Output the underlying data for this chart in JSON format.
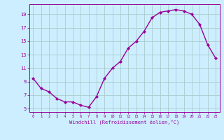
{
  "x": [
    0,
    1,
    2,
    3,
    4,
    5,
    6,
    7,
    8,
    9,
    10,
    11,
    12,
    13,
    14,
    15,
    16,
    17,
    18,
    19,
    20,
    21,
    22,
    23
  ],
  "y": [
    9.5,
    8.0,
    7.5,
    6.5,
    6.0,
    6.0,
    5.5,
    5.2,
    6.8,
    9.5,
    11.0,
    12.0,
    14.0,
    15.0,
    16.5,
    18.5,
    19.3,
    19.5,
    19.7,
    19.5,
    19.0,
    17.5,
    14.5,
    12.5
  ],
  "xlim": [
    -0.5,
    23.5
  ],
  "ylim": [
    4.5,
    20.5
  ],
  "xticks": [
    0,
    1,
    2,
    3,
    4,
    5,
    6,
    7,
    8,
    9,
    10,
    11,
    12,
    13,
    14,
    15,
    16,
    17,
    18,
    19,
    20,
    21,
    22,
    23
  ],
  "yticks": [
    5,
    7,
    9,
    11,
    13,
    15,
    17,
    19
  ],
  "xlabel": "Windchill (Refroidissement éolien,°C)",
  "line_color": "#990099",
  "bg_color": "#cceeff",
  "grid_color": "#aacccc",
  "marker": "D",
  "marker_size": 2.0,
  "linewidth": 1.0,
  "fig_width": 3.2,
  "fig_height": 2.0,
  "dpi": 100
}
